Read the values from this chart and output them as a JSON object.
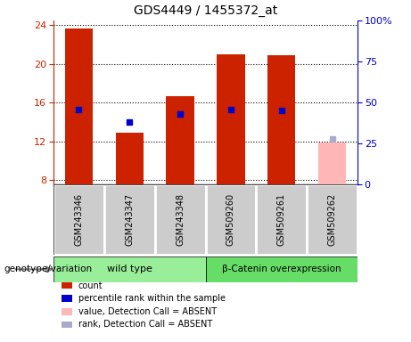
{
  "title": "GDS4449 / 1455372_at",
  "samples": [
    "GSM243346",
    "GSM243347",
    "GSM243348",
    "GSM509260",
    "GSM509261",
    "GSM509262"
  ],
  "count_values": [
    23.7,
    12.9,
    16.7,
    21.0,
    20.9,
    null
  ],
  "count_absent": [
    null,
    null,
    null,
    null,
    null,
    11.9
  ],
  "percentile_values": [
    15.3,
    14.0,
    14.8,
    15.3,
    15.2,
    null
  ],
  "percentile_absent": [
    null,
    null,
    null,
    null,
    null,
    12.2
  ],
  "ylim_left": [
    7.5,
    24.5
  ],
  "ylim_right": [
    0,
    100
  ],
  "yticks_left": [
    8,
    12,
    16,
    20,
    24
  ],
  "yticks_right": [
    0,
    25,
    50,
    75,
    100
  ],
  "yticklabels_right": [
    "0",
    "25",
    "50",
    "75",
    "100%"
  ],
  "bar_color_present": "#cc2200",
  "bar_color_absent": "#ffb6b6",
  "dot_color_present": "#0000cc",
  "dot_color_absent": "#aaaacc",
  "bar_width": 0.55,
  "plot_bg": "#ffffff",
  "label_bg": "#cccccc",
  "genotype_label": "genotype/variation",
  "wt_color": "#99ee99",
  "bc_color": "#66dd66",
  "legend_items": [
    {
      "color": "#cc2200",
      "label": "count"
    },
    {
      "color": "#0000cc",
      "label": "percentile rank within the sample"
    },
    {
      "color": "#ffb6b6",
      "label": "value, Detection Call = ABSENT"
    },
    {
      "color": "#aaaacc",
      "label": "rank, Detection Call = ABSENT"
    }
  ]
}
